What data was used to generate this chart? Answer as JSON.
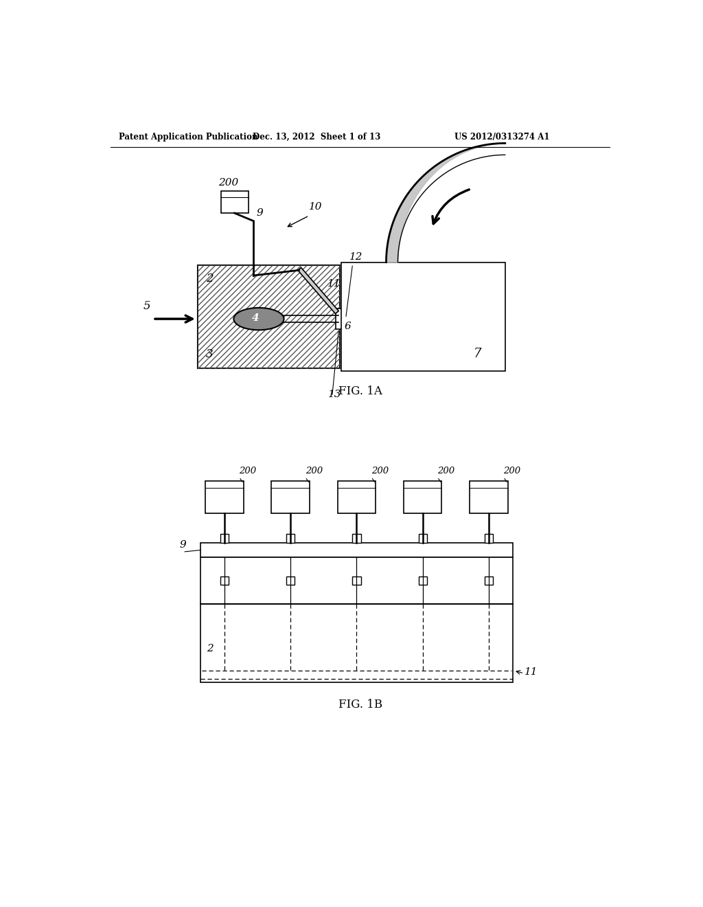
{
  "header_left": "Patent Application Publication",
  "header_center": "Dec. 13, 2012  Sheet 1 of 13",
  "header_right": "US 2012/0313274 A1",
  "fig1a_label": "FIG. 1A",
  "fig1b_label": "FIG. 1B",
  "background": "#ffffff",
  "line_color": "#000000"
}
